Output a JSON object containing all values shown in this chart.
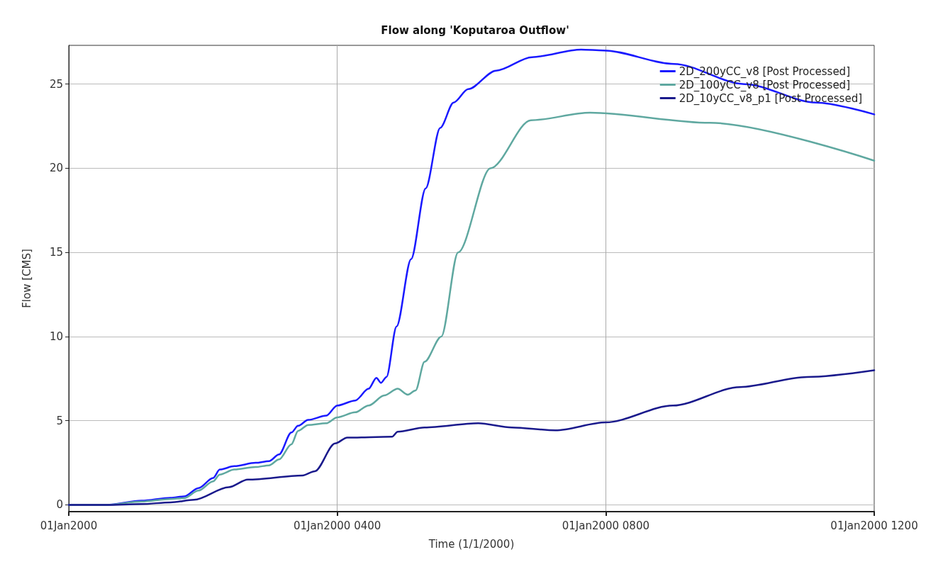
{
  "chart_data": {
    "type": "line",
    "title": "Flow along 'Koputaroa Outflow'",
    "xlabel": "Time (1/1/2000)",
    "ylabel": "Flow [CMS]",
    "xlim": [
      "2000-01-01T00:00",
      "2000-01-01T12:00"
    ],
    "xticks": [
      {
        "value": "2000-01-01T00:00",
        "label": "01Jan2000"
      },
      {
        "value": "2000-01-01T04:00",
        "label": "01Jan2000 0400"
      },
      {
        "value": "2000-01-01T08:00",
        "label": "01Jan2000 0800"
      },
      {
        "value": "2000-01-01T12:00",
        "label": "01Jan2000 1200"
      }
    ],
    "ylim": [
      -0.4,
      27.3
    ],
    "yticks": [
      0,
      5,
      10,
      15,
      20,
      25
    ],
    "grid": true,
    "legend": "top right",
    "marker": "none",
    "line_style": "solid",
    "series": [
      {
        "name": "2D_200yCC_v8 [Post Processed]",
        "color": "#1a1aff",
        "x": [
          "2000-01-01T00:00",
          "2000-01-01T00:34",
          "2000-01-01T01:05",
          "2000-01-01T01:31",
          "2000-01-01T01:43",
          "2000-01-01T01:56",
          "2000-01-01T02:09",
          "2000-01-01T02:15",
          "2000-01-01T02:28",
          "2000-01-01T02:47",
          "2000-01-01T02:59",
          "2000-01-01T03:08",
          "2000-01-01T03:19",
          "2000-01-01T03:25",
          "2000-01-01T03:34",
          "2000-01-01T03:50",
          "2000-01-01T04:00",
          "2000-01-01T04:16",
          "2000-01-01T04:28",
          "2000-01-01T04:35",
          "2000-01-01T04:39",
          "2000-01-01T04:44",
          "2000-01-01T04:53",
          "2000-01-01T05:06",
          "2000-01-01T05:19",
          "2000-01-01T05:32",
          "2000-01-01T05:44",
          "2000-01-01T05:57",
          "2000-01-01T06:22",
          "2000-01-01T06:54",
          "2000-01-01T07:38",
          "2000-01-01T07:58",
          "2000-01-01T09:01",
          "2000-01-01T10:04",
          "2000-01-01T11:08",
          "2000-01-01T12:00"
        ],
        "values": [
          0,
          0,
          0.25,
          0.42,
          0.5,
          1.0,
          1.6,
          2.1,
          2.3,
          2.5,
          2.6,
          3.0,
          4.3,
          4.7,
          5.05,
          5.3,
          5.9,
          6.2,
          6.9,
          7.55,
          7.25,
          7.6,
          10.6,
          14.6,
          18.8,
          22.4,
          23.9,
          24.7,
          25.8,
          26.6,
          27.05,
          27.0,
          26.2,
          25.0,
          23.9,
          23.2
        ]
      },
      {
        "name": "2D_100yCC_v8 [Post Processed]",
        "color": "#5fa8a0",
        "x": [
          "2000-01-01T00:00",
          "2000-01-01T00:34",
          "2000-01-01T01:05",
          "2000-01-01T01:31",
          "2000-01-01T01:43",
          "2000-01-01T01:56",
          "2000-01-01T02:09",
          "2000-01-01T02:15",
          "2000-01-01T02:28",
          "2000-01-01T02:47",
          "2000-01-01T02:59",
          "2000-01-01T03:08",
          "2000-01-01T03:19",
          "2000-01-01T03:25",
          "2000-01-01T03:34",
          "2000-01-01T03:50",
          "2000-01-01T04:00",
          "2000-01-01T04:16",
          "2000-01-01T04:28",
          "2000-01-01T04:42",
          "2000-01-01T04:54",
          "2000-01-01T05:03",
          "2000-01-01T05:10",
          "2000-01-01T05:18",
          "2000-01-01T05:33",
          "2000-01-01T05:48",
          "2000-01-01T06:17",
          "2000-01-01T06:53",
          "2000-01-01T07:46",
          "2000-01-01T09:33",
          "2000-01-01T12:00"
        ],
        "values": [
          0,
          0,
          0.2,
          0.35,
          0.4,
          0.85,
          1.4,
          1.8,
          2.1,
          2.25,
          2.35,
          2.7,
          3.6,
          4.4,
          4.75,
          4.85,
          5.2,
          5.5,
          5.9,
          6.5,
          6.9,
          6.55,
          6.8,
          8.5,
          10.0,
          15.0,
          20.0,
          22.85,
          23.3,
          22.7,
          20.45
        ]
      },
      {
        "name": "2D_10yCC_v8_p1 [Post Processed]",
        "color": "#1a1a8c",
        "x": [
          "2000-01-01T00:00",
          "2000-01-01T00:34",
          "2000-01-01T01:05",
          "2000-01-01T01:31",
          "2000-01-01T01:52",
          "2000-01-01T02:23",
          "2000-01-01T02:40",
          "2000-01-01T03:29",
          "2000-01-01T03:40",
          "2000-01-01T03:58",
          "2000-01-01T04:09",
          "2000-01-01T04:49",
          "2000-01-01T04:54",
          "2000-01-01T05:18",
          "2000-01-01T06:06",
          "2000-01-01T06:36",
          "2000-01-01T07:15",
          "2000-01-01T08:00",
          "2000-01-01T09:00",
          "2000-01-01T10:00",
          "2000-01-01T11:00",
          "2000-01-01T12:00"
        ],
        "values": [
          0,
          0,
          0.05,
          0.15,
          0.3,
          1.05,
          1.5,
          1.75,
          2.0,
          3.65,
          4.0,
          4.05,
          4.35,
          4.6,
          4.85,
          4.6,
          4.43,
          4.9,
          5.9,
          7.0,
          7.6,
          8.0
        ]
      }
    ]
  }
}
